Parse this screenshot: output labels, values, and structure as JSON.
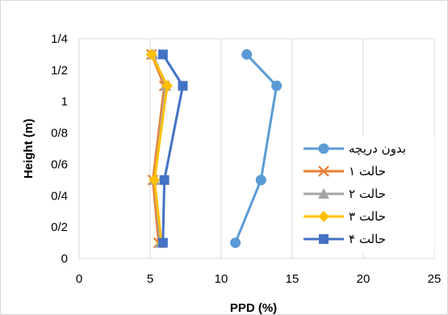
{
  "chart_data": {
    "type": "line",
    "title": "",
    "xlabel": "PPD (%)",
    "ylabel": "Height (m)",
    "xlim": [
      0,
      25
    ],
    "ylim": [
      0,
      1.4
    ],
    "x_ticks": [
      0,
      5,
      10,
      15,
      20,
      25
    ],
    "y_ticks": [
      0,
      0.2,
      0.4,
      0.6,
      0.8,
      1.0,
      1.2,
      1.4
    ],
    "x_tick_labels": [
      "0",
      "5",
      "10",
      "15",
      "20",
      "25"
    ],
    "y_tick_labels": [
      "0",
      "0/2",
      "0/4",
      "0/6",
      "0/8",
      "1",
      "1/2",
      "1/4"
    ],
    "grid": "vertical",
    "legend_position": "right-middle",
    "series": [
      {
        "name": "بدون دریچه",
        "color": "#5B9BD5",
        "marker": "circle",
        "points": [
          [
            11.0,
            0.1
          ],
          [
            12.8,
            0.5
          ],
          [
            13.9,
            1.1
          ],
          [
            11.8,
            1.3
          ]
        ]
      },
      {
        "name": "حالت ۱",
        "color": "#ED7D31",
        "marker": "x",
        "points": [
          [
            5.6,
            0.1
          ],
          [
            5.2,
            0.5
          ],
          [
            6.0,
            1.1
          ],
          [
            5.1,
            1.3
          ]
        ]
      },
      {
        "name": "حالت ۲",
        "color": "#A5A5A5",
        "marker": "triangle",
        "points": [
          [
            5.7,
            0.1
          ],
          [
            5.3,
            0.5
          ],
          [
            6.1,
            1.1
          ],
          [
            5.2,
            1.3
          ]
        ]
      },
      {
        "name": "حالت ۳",
        "color": "#FFC000",
        "marker": "diamond",
        "points": [
          [
            5.8,
            0.1
          ],
          [
            5.3,
            0.5
          ],
          [
            6.2,
            1.1
          ],
          [
            5.1,
            1.3
          ]
        ]
      },
      {
        "name": "حالت ۴",
        "color": "#4472C4",
        "marker": "square",
        "points": [
          [
            5.9,
            0.1
          ],
          [
            6.0,
            0.5
          ],
          [
            7.3,
            1.1
          ],
          [
            5.9,
            1.3
          ]
        ]
      }
    ]
  }
}
